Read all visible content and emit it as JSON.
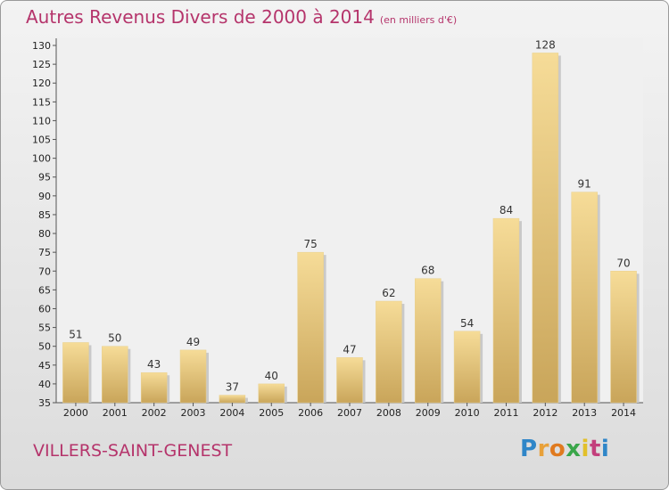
{
  "title": {
    "main": "Autres Revenus Divers de 2000 à 2014",
    "unit": "(en milliers d'€)"
  },
  "commune": "VILLERS-SAINT-GENEST",
  "logo": {
    "letters": [
      "P",
      "r",
      "o",
      "x",
      "i",
      "t",
      "i"
    ],
    "colors": [
      "#2f86c8",
      "#e8a13a",
      "#e07a1f",
      "#3aa64a",
      "#e2c02a",
      "#c33f7c",
      "#2f86c8"
    ]
  },
  "colors": {
    "title": "#b5346b",
    "bar_light": "#f6dc98",
    "bar_dark": "#c9a55a"
  },
  "chart_data": {
    "type": "bar",
    "categories": [
      "2000",
      "2001",
      "2002",
      "2003",
      "2004",
      "2005",
      "2006",
      "2007",
      "2008",
      "2009",
      "2010",
      "2011",
      "2012",
      "2013",
      "2014"
    ],
    "values": [
      51,
      50,
      43,
      49,
      37,
      40,
      75,
      47,
      62,
      68,
      54,
      84,
      128,
      91,
      70
    ],
    "title": "Autres Revenus Divers de 2000 à 2014",
    "ylim": [
      35,
      130
    ],
    "ytick_step": 5,
    "grid": false,
    "legend": "none",
    "data_labels": true
  }
}
